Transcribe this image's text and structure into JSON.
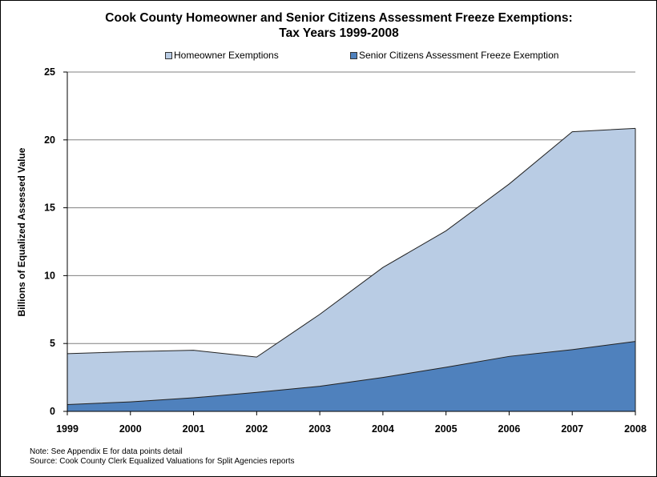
{
  "chart_data": {
    "type": "area",
    "title_line1": "Cook County Homeowner and Senior Citizens Assessment Freeze Exemptions:",
    "title_line2": "Tax Years 1999-2008",
    "xlabel": "",
    "ylabel": "Billions of Equalized Assessed Value",
    "ylim": [
      0,
      25
    ],
    "yticks": [
      0,
      5,
      10,
      15,
      20,
      25
    ],
    "categories": [
      "1999",
      "2000",
      "2001",
      "2002",
      "2003",
      "2004",
      "2005",
      "2006",
      "2007",
      "2008"
    ],
    "stacked": true,
    "grid": true,
    "legend_position": "top",
    "series": [
      {
        "name": "Senior Citizens Assessment Freeze Exemption",
        "color": "#4f81bd",
        "values": [
          0.5,
          0.7,
          1.0,
          1.4,
          1.85,
          2.5,
          3.25,
          4.05,
          4.55,
          5.15
        ]
      },
      {
        "name": "Homeowner Exemptions",
        "color": "#b9cce4",
        "values": [
          3.75,
          3.7,
          3.5,
          2.6,
          5.3,
          8.1,
          10.05,
          12.7,
          16.05,
          15.7
        ]
      }
    ],
    "totals": [
      4.25,
      4.4,
      4.5,
      4.0,
      7.15,
      10.6,
      13.3,
      16.75,
      20.6,
      20.85
    ]
  },
  "notes": {
    "line1": "Note: See Appendix E for data points detail",
    "line2": "Source: Cook County Clerk Equalized Valuations for Split Agencies reports"
  }
}
